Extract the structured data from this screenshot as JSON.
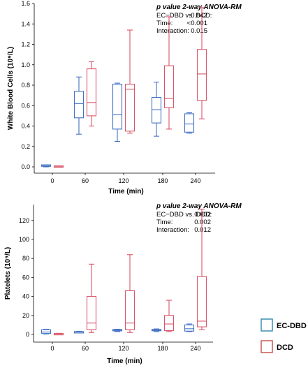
{
  "colors": {
    "ec_dbd": "#4472c4",
    "dcd": "#d9566a",
    "legend_ec_dbd": "#2e86ab",
    "legend_dcd": "#c0504d"
  },
  "legend": {
    "ec_dbd_label": "EC-DBD",
    "dcd_label": "DCD"
  },
  "chart_data": [
    {
      "type": "box",
      "ylabel": "White Blood Cells (10⁹/L)",
      "xlabel": "Time (min)",
      "ylim": [
        -0.1,
        1.7
      ],
      "yticks": [
        0.0,
        0.2,
        0.4,
        0.6,
        0.8,
        1.0,
        1.2,
        1.4,
        1.6
      ],
      "ytick_labels": [
        "0.0",
        "0.2",
        "0.4",
        "0.6",
        "0.8",
        "1.0",
        "1.2",
        "1.4",
        "1.6"
      ],
      "categories": [
        "0",
        "60",
        "120",
        "180",
        "240"
      ],
      "stats": {
        "title": "p value 2-way ANOVA-RM",
        "rows": [
          {
            "label": "EC−DBD vs. DCD:",
            "value": "0.842"
          },
          {
            "label": "Time:",
            "value": "<0.001"
          },
          {
            "label": "Interaction:",
            "value": "0.015"
          }
        ]
      },
      "series": [
        {
          "name": "EC-DBD",
          "boxes": [
            {
              "min": 0.0,
              "q1": 0.005,
              "median": 0.01,
              "q3": 0.02,
              "max": 0.02
            },
            {
              "min": 0.32,
              "q1": 0.48,
              "median": 0.62,
              "q3": 0.74,
              "max": 0.88
            },
            {
              "min": 0.25,
              "q1": 0.37,
              "median": 0.51,
              "q3": 0.81,
              "max": 0.82
            },
            {
              "min": 0.3,
              "q1": 0.43,
              "median": 0.56,
              "q3": 0.68,
              "max": 0.83
            },
            {
              "min": 0.33,
              "q1": 0.34,
              "median": 0.42,
              "q3": 0.52,
              "max": 0.53
            }
          ]
        },
        {
          "name": "DCD",
          "boxes": [
            {
              "min": 0.0,
              "q1": 0.0,
              "median": 0.005,
              "q3": 0.01,
              "max": 0.01
            },
            {
              "min": 0.4,
              "q1": 0.5,
              "median": 0.63,
              "q3": 0.96,
              "max": 1.03
            },
            {
              "min": 0.33,
              "q1": 0.35,
              "median": 0.76,
              "q3": 0.81,
              "max": 1.34
            },
            {
              "min": 0.37,
              "q1": 0.58,
              "median": 0.67,
              "q3": 0.99,
              "max": 1.47
            },
            {
              "min": 0.47,
              "q1": 0.65,
              "median": 0.91,
              "q3": 1.15,
              "max": 1.56
            }
          ]
        }
      ]
    },
    {
      "type": "box",
      "ylabel": "Platelets (10⁹/L)",
      "xlabel": "Time (min)",
      "ylim": [
        -4,
        133
      ],
      "yticks": [
        0,
        20,
        40,
        60,
        80,
        100,
        120
      ],
      "ytick_labels": [
        "0",
        "20",
        "40",
        "60",
        "80",
        "100",
        "120"
      ],
      "categories": [
        "0",
        "60",
        "120",
        "180",
        "240"
      ],
      "stats": {
        "title": "p value 2-way ANOVA-RM",
        "rows": [
          {
            "label": "EC−DBD vs. DCD:",
            "value": "0.002"
          },
          {
            "label": "Time:",
            "value": "0.002"
          },
          {
            "label": "Interaction:",
            "value": "0.012"
          }
        ]
      },
      "series": [
        {
          "name": "EC-DBD",
          "boxes": [
            {
              "min": 0.5,
              "q1": 1.0,
              "median": 2.5,
              "q3": 5.0,
              "max": 5.5
            },
            {
              "min": 2.0,
              "q1": 2.2,
              "median": 2.6,
              "q3": 3.0,
              "max": 3.2
            },
            {
              "min": 3.0,
              "q1": 3.8,
              "median": 4.5,
              "q3": 5.2,
              "max": 5.5
            },
            {
              "min": 3.0,
              "q1": 4.0,
              "median": 4.5,
              "q3": 5.3,
              "max": 5.8
            },
            {
              "min": 3.0,
              "q1": 3.5,
              "median": 6.0,
              "q3": 10.0,
              "max": 11.0
            }
          ]
        },
        {
          "name": "DCD",
          "boxes": [
            {
              "min": 0.0,
              "q1": 0.3,
              "median": 0.6,
              "q3": 1.0,
              "max": 1.2
            },
            {
              "min": 2.0,
              "q1": 5.0,
              "median": 12.0,
              "q3": 40.0,
              "max": 74.0
            },
            {
              "min": 2.0,
              "q1": 5.0,
              "median": 12.0,
              "q3": 46.0,
              "max": 84.0
            },
            {
              "min": 3.0,
              "q1": 4.0,
              "median": 11.0,
              "q3": 20.0,
              "max": 36.0
            },
            {
              "min": 5.0,
              "q1": 8.0,
              "median": 14.0,
              "q3": 61.0,
              "max": 132.0
            }
          ]
        }
      ]
    }
  ]
}
